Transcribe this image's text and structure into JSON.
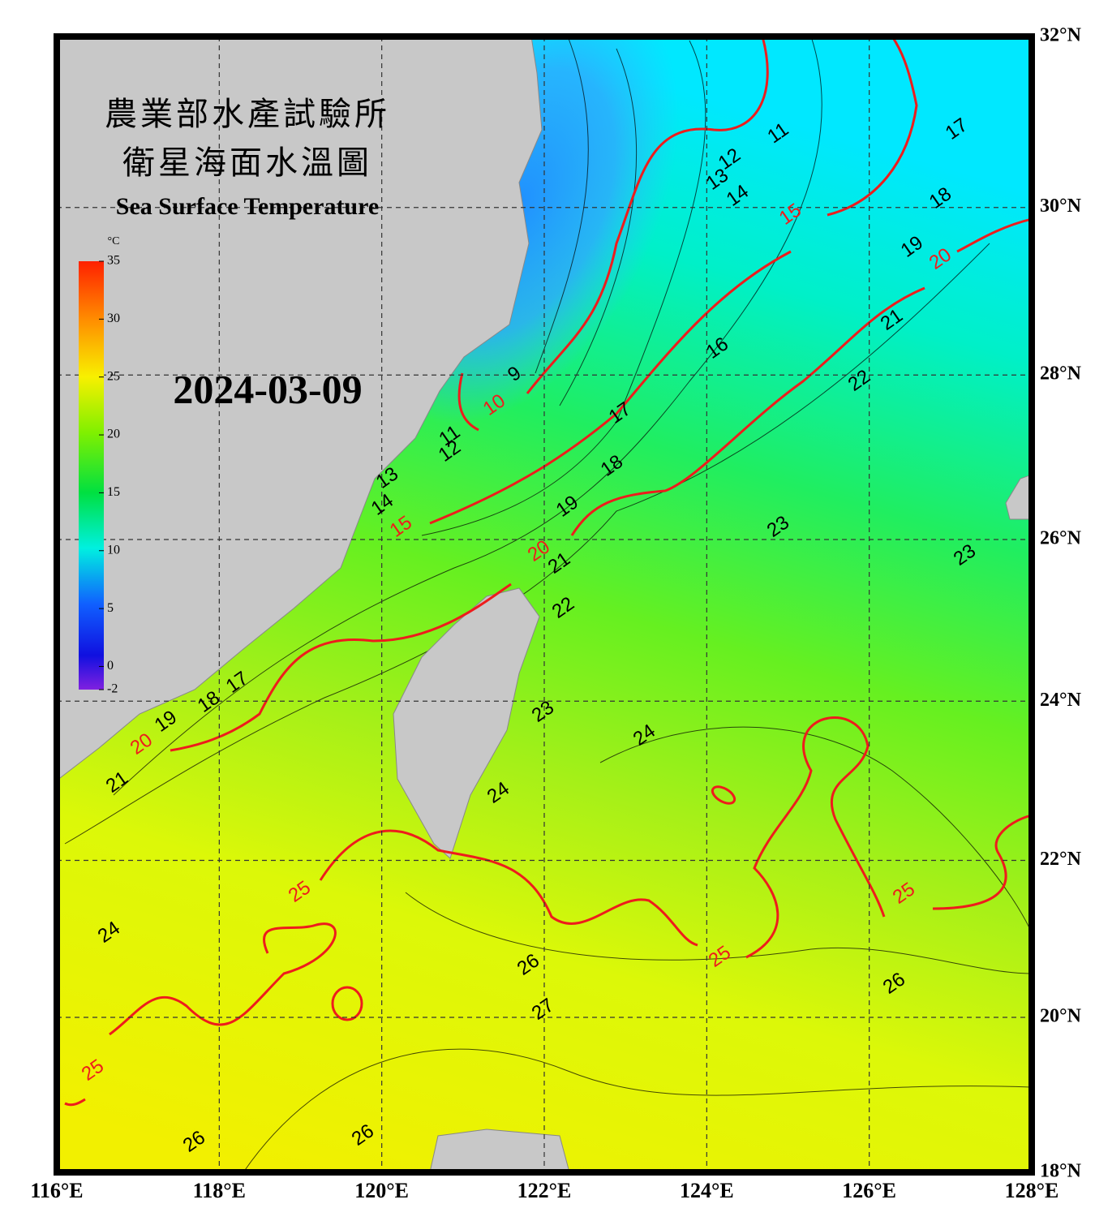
{
  "map": {
    "title_zh": [
      "農業部水產試驗所",
      "衛星海面水溫圖"
    ],
    "title_en": "Sea Surface Temperature",
    "date": "2024-03-09",
    "xlim": [
      116,
      128
    ],
    "ylim": [
      18,
      32
    ],
    "xticks": [
      {
        "value": 116,
        "label": "116°E"
      },
      {
        "value": 118,
        "label": "118°E"
      },
      {
        "value": 120,
        "label": "120°E"
      },
      {
        "value": 122,
        "label": "122°E"
      },
      {
        "value": 124,
        "label": "124°E"
      },
      {
        "value": 126,
        "label": "126°E"
      },
      {
        "value": 128,
        "label": "128°E"
      }
    ],
    "yticks": [
      {
        "value": 18,
        "label": "18°N"
      },
      {
        "value": 20,
        "label": "20°N"
      },
      {
        "value": 22,
        "label": "22°N"
      },
      {
        "value": 24,
        "label": "24°N"
      },
      {
        "value": 26,
        "label": "26°N"
      },
      {
        "value": 28,
        "label": "28°N"
      },
      {
        "value": 30,
        "label": "30°N"
      },
      {
        "value": 32,
        "label": "32°N"
      }
    ],
    "colorbar": {
      "unit": "°C",
      "lim": [
        -2,
        35
      ],
      "ticks": [
        35,
        30,
        25,
        20,
        15,
        10,
        5,
        0,
        -2
      ]
    },
    "contour_labels": [
      "11",
      "12",
      "13",
      "14",
      "15",
      "17",
      "18",
      "19",
      "20",
      "21",
      "16",
      "22",
      "9",
      "10",
      "11",
      "12",
      "17",
      "18",
      "19",
      "20",
      "21",
      "22",
      "23",
      "23",
      "13",
      "14",
      "15",
      "17",
      "18",
      "19",
      "20",
      "21",
      "23",
      "24",
      "24",
      "25",
      "25",
      "25",
      "24",
      "26",
      "26",
      "27",
      "25",
      "26",
      "26"
    ]
  }
}
